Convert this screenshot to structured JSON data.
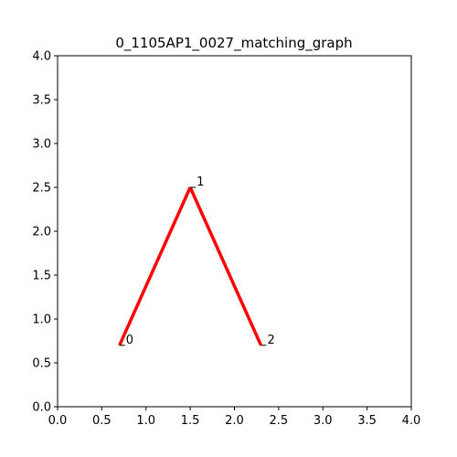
{
  "chart_data": {
    "type": "line",
    "title": "0_1105AP1_0027_matching_graph",
    "xlabel": "",
    "ylabel": "",
    "xlim": [
      0,
      4
    ],
    "ylim": [
      0,
      4
    ],
    "grid": false,
    "x_ticks": [
      "0.0",
      "0.5",
      "1.0",
      "1.5",
      "2.0",
      "2.5",
      "3.0",
      "3.5",
      "4.0"
    ],
    "y_ticks": [
      "0.0",
      "0.5",
      "1.0",
      "1.5",
      "2.0",
      "2.5",
      "3.0",
      "3.5",
      "4.0"
    ],
    "line_color": "#ff0000",
    "nodes": [
      {
        "label": "0",
        "x": 0.7,
        "y": 0.7
      },
      {
        "label": "1",
        "x": 1.5,
        "y": 2.5
      },
      {
        "label": "2",
        "x": 2.3,
        "y": 0.7
      }
    ],
    "edges": [
      [
        0,
        1
      ],
      [
        1,
        2
      ]
    ]
  }
}
